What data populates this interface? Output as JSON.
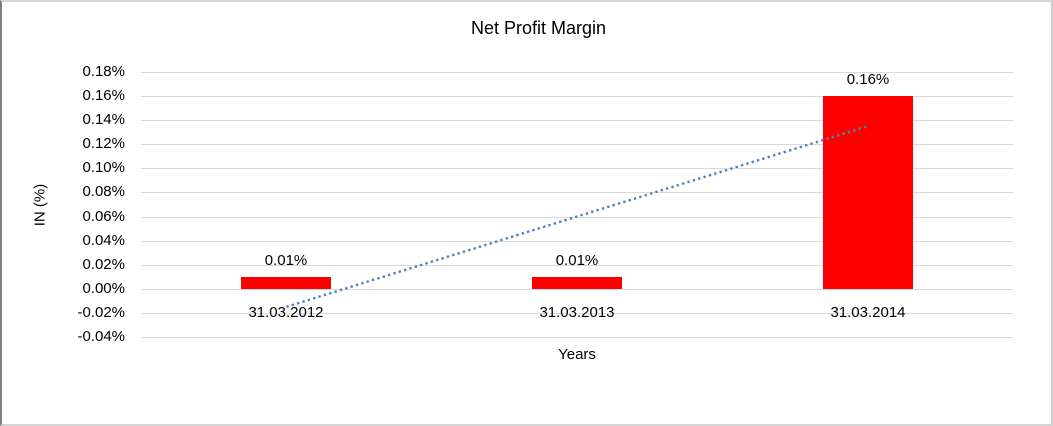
{
  "chart_data": {
    "type": "bar",
    "title": "Net Profit Margin",
    "xlabel": "Years",
    "ylabel": "IN (%)",
    "categories": [
      "31.03.2012",
      "31.03.2013",
      "31.03.2014"
    ],
    "values": [
      0.01,
      0.01,
      0.16
    ],
    "data_labels": [
      "0.01%",
      "0.01%",
      "0.16%"
    ],
    "yticks": [
      {
        "value": 0.18,
        "label": "0.18%"
      },
      {
        "value": 0.16,
        "label": "0.16%"
      },
      {
        "value": 0.14,
        "label": "0.14%"
      },
      {
        "value": 0.12,
        "label": "0.12%"
      },
      {
        "value": 0.1,
        "label": "0.10%"
      },
      {
        "value": 0.08,
        "label": "0.08%"
      },
      {
        "value": 0.06,
        "label": "0.06%"
      },
      {
        "value": 0.04,
        "label": "0.04%"
      },
      {
        "value": 0.02,
        "label": "0.02%"
      },
      {
        "value": 0.0,
        "label": "0.00%"
      },
      {
        "value": -0.02,
        "label": "-0.02%"
      },
      {
        "value": -0.04,
        "label": "-0.04%"
      }
    ],
    "ylim": [
      -0.04,
      0.18
    ],
    "grid": true,
    "legend": "none",
    "colors": {
      "bar": "#ff0000",
      "gridline": "#d9d9d9",
      "trendline": "#4f81bd",
      "text": "#000000"
    },
    "trendline": {
      "style": "dotted",
      "start_value": -0.015,
      "end_value": 0.135
    }
  }
}
